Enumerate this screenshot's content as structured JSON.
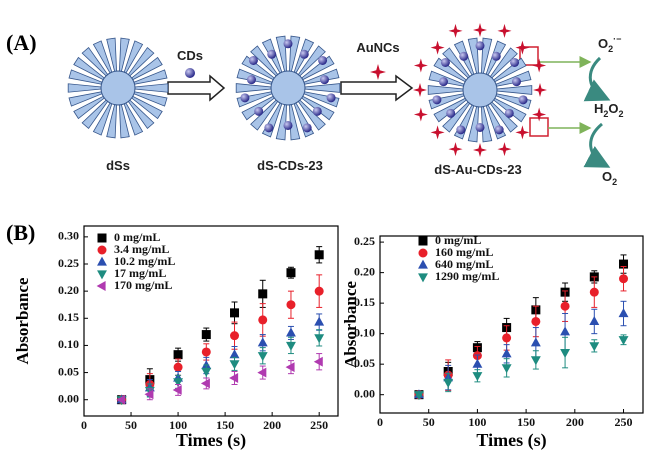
{
  "panel_a": {
    "label": "(A)",
    "cds": "CDs",
    "auncs": "AuNCs",
    "dss": "dSs",
    "ds_cds": "dS-CDs-23",
    "ds_au_cds": "dS-Au-CDs-23",
    "superoxide": {
      "base": "O",
      "sub": "2",
      "sup": "·−"
    },
    "peroxide": {
      "a": "H",
      "sub1": "2",
      "b": "O",
      "sub2": "2"
    },
    "oxygen": {
      "base": "O",
      "sub": "2"
    }
  },
  "panel_b": {
    "label": "(B)"
  },
  "chart_data": [
    {
      "type": "scatter",
      "y_label": "Absorbance",
      "x_label": "Times (s)",
      "xlim": [
        0,
        270
      ],
      "ylim": [
        -0.03,
        0.32
      ],
      "xticks": [
        0,
        50,
        100,
        150,
        200,
        250
      ],
      "yticks": [
        {
          "value": 0,
          "label": "0.00"
        },
        {
          "value": 0.05,
          "label": "0.05"
        },
        {
          "value": 0.1,
          "label": "0.10"
        },
        {
          "value": 0.15,
          "label": "0.15"
        },
        {
          "value": 0.2,
          "label": "0.20"
        },
        {
          "value": 0.25,
          "label": "0.25"
        },
        {
          "value": 0.3,
          "label": "0.30"
        }
      ],
      "x": [
        40,
        70,
        100,
        130,
        160,
        190,
        220,
        250
      ],
      "series": [
        {
          "name": "0 mg/mL",
          "color": "#000000",
          "marker": "square",
          "values": [
            0,
            0.037,
            0.083,
            0.12,
            0.16,
            0.195,
            0.234,
            0.267
          ],
          "errors": [
            0.002,
            0.02,
            0.012,
            0.012,
            0.02,
            0.025,
            0.01,
            0.015
          ]
        },
        {
          "name": "3.4 mg/mL",
          "color": "#e8202a",
          "marker": "circle",
          "values": [
            0,
            0.028,
            0.06,
            0.088,
            0.118,
            0.147,
            0.175,
            0.2
          ],
          "errors": [
            0.002,
            0.02,
            0.015,
            0.015,
            0.025,
            0.03,
            0.025,
            0.03
          ]
        },
        {
          "name": "10.2 mg/mL",
          "color": "#2b4fb0",
          "marker": "triangle-up",
          "values": [
            0,
            0.022,
            0.04,
            0.063,
            0.083,
            0.105,
            0.123,
            0.143
          ],
          "errors": [
            0.002,
            0.015,
            0.012,
            0.015,
            0.015,
            0.015,
            0.012,
            0.015
          ]
        },
        {
          "name": "17 mg/mL",
          "color": "#1e8c80",
          "marker": "triangle-down",
          "values": [
            0,
            0.017,
            0.033,
            0.052,
            0.066,
            0.081,
            0.1,
            0.114
          ],
          "errors": [
            0.002,
            0.012,
            0.012,
            0.012,
            0.012,
            0.015,
            0.015,
            0.015
          ]
        },
        {
          "name": "170 mg/mL",
          "color": "#b03ab0",
          "marker": "triangle-left",
          "values": [
            0,
            0.01,
            0.018,
            0.03,
            0.04,
            0.05,
            0.06,
            0.07
          ],
          "errors": [
            0.002,
            0.01,
            0.01,
            0.01,
            0.012,
            0.012,
            0.012,
            0.015
          ]
        }
      ]
    },
    {
      "type": "scatter",
      "y_label": "Absorbance",
      "x_label": "Times (s)",
      "xlim": [
        0,
        270
      ],
      "ylim": [
        -0.03,
        0.26
      ],
      "xticks": [
        0,
        50,
        100,
        150,
        200,
        250
      ],
      "yticks": [
        {
          "value": 0,
          "label": "0.00"
        },
        {
          "value": 0.05,
          "label": "0.05"
        },
        {
          "value": 0.1,
          "label": "0.10"
        },
        {
          "value": 0.15,
          "label": "0.15"
        },
        {
          "value": 0.2,
          "label": "0.20"
        },
        {
          "value": 0.25,
          "label": "0.25"
        }
      ],
      "x": [
        40,
        70,
        100,
        130,
        160,
        190,
        220,
        250
      ],
      "series": [
        {
          "name": "0 mg/mL",
          "color": "#000000",
          "marker": "square",
          "values": [
            0,
            0.038,
            0.077,
            0.11,
            0.139,
            0.168,
            0.193,
            0.214
          ],
          "errors": [
            0.002,
            0.015,
            0.01,
            0.015,
            0.02,
            0.015,
            0.01,
            0.015
          ]
        },
        {
          "name": "160 mg/mL",
          "color": "#e8202a",
          "marker": "circle",
          "values": [
            0,
            0.032,
            0.064,
            0.093,
            0.12,
            0.145,
            0.168,
            0.19
          ],
          "errors": [
            0.002,
            0.025,
            0.015,
            0.02,
            0.025,
            0.025,
            0.025,
            0.02
          ]
        },
        {
          "name": "640 mg/mL",
          "color": "#2b4fb0",
          "marker": "triangle-up",
          "values": [
            0,
            0.028,
            0.05,
            0.067,
            0.085,
            0.103,
            0.12,
            0.133
          ],
          "errors": [
            0.002,
            0.02,
            0.015,
            0.015,
            0.025,
            0.03,
            0.02,
            0.02
          ]
        },
        {
          "name": "1290 mg/mL",
          "color": "#1e8c80",
          "marker": "triangle-down",
          "values": [
            0,
            0.02,
            0.031,
            0.044,
            0.057,
            0.069,
            0.08,
            0.09
          ],
          "errors": [
            0.002,
            0.015,
            0.01,
            0.015,
            0.015,
            0.025,
            0.01,
            0.008
          ]
        }
      ]
    }
  ]
}
